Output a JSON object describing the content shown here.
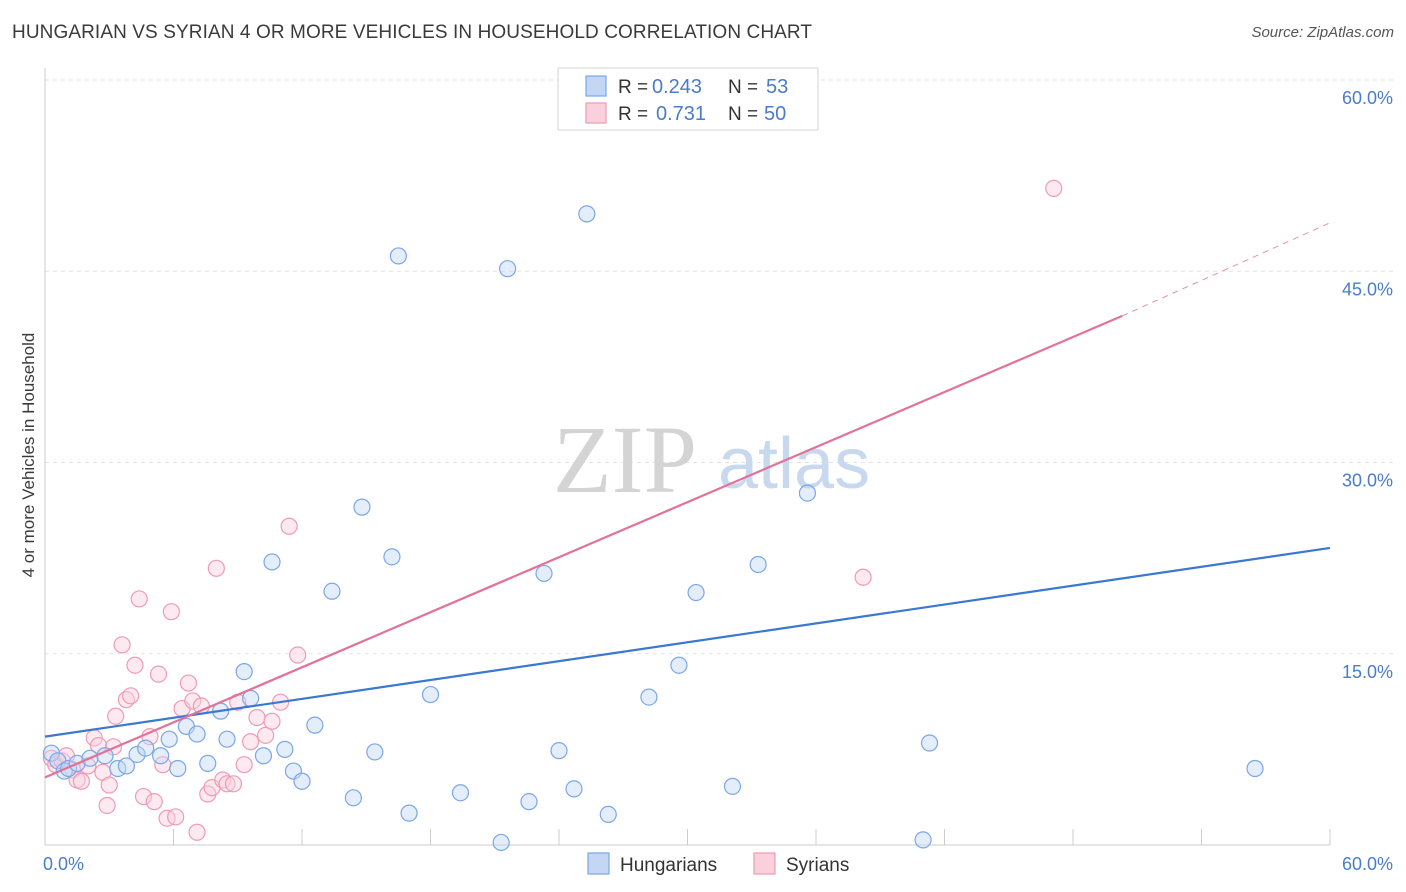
{
  "header": {
    "title": "HUNGARIAN VS SYRIAN 4 OR MORE VEHICLES IN HOUSEHOLD CORRELATION CHART",
    "source": "Source: ZipAtlas.com"
  },
  "watermark": {
    "zip": "ZIP",
    "atlas": "atlas"
  },
  "colors": {
    "hungarian": "#7aa7e8",
    "hungarian_line": "#3a78d2",
    "syrian": "#f09ab4",
    "syrian_line": "#e2729a",
    "tick": "#4a7cc9"
  },
  "chart_data": {
    "type": "scatter",
    "title": "HUNGARIAN VS SYRIAN 4 OR MORE VEHICLES IN HOUSEHOLD CORRELATION CHART",
    "xlabel": "",
    "ylabel": "4 or more Vehicles in Household",
    "xlim": [
      0,
      60
    ],
    "ylim": [
      0,
      60
    ],
    "x_tick_labels": [
      "0.0%",
      "60.0%"
    ],
    "y_ticks": [
      15,
      30,
      45,
      60
    ],
    "y_tick_labels": [
      "15.0%",
      "30.0%",
      "45.0%",
      "60.0%"
    ],
    "legend": [
      {
        "r_label": "R =",
        "r_value": "0.243",
        "n_label": "N =",
        "n_value": "53"
      },
      {
        "r_label": "R =",
        "r_value": "0.731",
        "n_label": "N =",
        "n_value": "50"
      }
    ],
    "series": [
      {
        "name": "Hungarians",
        "trend": {
          "x0": 0,
          "y0": 8.5,
          "x1": 60,
          "y1": 23.3
        },
        "points": [
          [
            0.3,
            7.2
          ],
          [
            0.6,
            6.6
          ],
          [
            0.9,
            5.8
          ],
          [
            1.1,
            6.0
          ],
          [
            1.5,
            6.4
          ],
          [
            2.1,
            6.8
          ],
          [
            2.8,
            7.0
          ],
          [
            3.4,
            6.0
          ],
          [
            3.8,
            6.2
          ],
          [
            4.3,
            7.1
          ],
          [
            4.7,
            7.6
          ],
          [
            5.4,
            7.0
          ],
          [
            5.8,
            8.3
          ],
          [
            6.2,
            6.0
          ],
          [
            6.6,
            9.3
          ],
          [
            7.1,
            8.7
          ],
          [
            7.6,
            6.4
          ],
          [
            8.2,
            10.5
          ],
          [
            8.5,
            8.3
          ],
          [
            9.3,
            13.6
          ],
          [
            9.6,
            11.5
          ],
          [
            10.2,
            7.0
          ],
          [
            10.6,
            22.2
          ],
          [
            11.2,
            7.5
          ],
          [
            11.6,
            5.8
          ],
          [
            12.0,
            5.0
          ],
          [
            12.6,
            9.4
          ],
          [
            13.4,
            19.9
          ],
          [
            14.4,
            3.7
          ],
          [
            14.8,
            26.5
          ],
          [
            15.4,
            7.3
          ],
          [
            16.2,
            22.6
          ],
          [
            16.5,
            46.2
          ],
          [
            17.0,
            2.5
          ],
          [
            18.0,
            11.8
          ],
          [
            19.4,
            4.1
          ],
          [
            21.3,
            0.2
          ],
          [
            21.6,
            45.2
          ],
          [
            22.6,
            3.4
          ],
          [
            23.3,
            21.3
          ],
          [
            24.0,
            7.4
          ],
          [
            24.7,
            4.4
          ],
          [
            25.3,
            49.5
          ],
          [
            26.3,
            2.4
          ],
          [
            28.2,
            11.6
          ],
          [
            29.6,
            14.1
          ],
          [
            30.4,
            19.8
          ],
          [
            32.1,
            4.6
          ],
          [
            33.3,
            22.0
          ],
          [
            35.6,
            27.6
          ],
          [
            41.0,
            0.4
          ],
          [
            41.3,
            8.0
          ],
          [
            56.5,
            6.0
          ]
        ]
      },
      {
        "name": "Syrians",
        "trend": {
          "x0": 0,
          "y0": 5.3,
          "x1": 50.3,
          "y1": 41.5
        },
        "trend_dashed": {
          "x0": 50.3,
          "y0": 41.5,
          "x1": 60,
          "y1": 48.8
        },
        "points": [
          [
            0.3,
            6.8
          ],
          [
            0.5,
            6.3
          ],
          [
            0.8,
            6.6
          ],
          [
            1.0,
            7.0
          ],
          [
            1.3,
            5.9
          ],
          [
            1.5,
            5.1
          ],
          [
            1.7,
            5.0
          ],
          [
            2.0,
            6.2
          ],
          [
            2.3,
            8.4
          ],
          [
            2.5,
            7.8
          ],
          [
            2.7,
            5.7
          ],
          [
            2.9,
            3.1
          ],
          [
            3.0,
            4.7
          ],
          [
            3.2,
            7.7
          ],
          [
            3.3,
            10.1
          ],
          [
            3.6,
            15.7
          ],
          [
            3.8,
            11.4
          ],
          [
            4.0,
            11.7
          ],
          [
            4.2,
            14.1
          ],
          [
            4.4,
            19.3
          ],
          [
            4.6,
            3.8
          ],
          [
            4.9,
            8.5
          ],
          [
            5.1,
            3.4
          ],
          [
            5.3,
            13.4
          ],
          [
            5.5,
            6.3
          ],
          [
            5.7,
            2.1
          ],
          [
            5.9,
            18.3
          ],
          [
            6.1,
            2.2
          ],
          [
            6.4,
            10.7
          ],
          [
            6.7,
            12.7
          ],
          [
            6.9,
            11.3
          ],
          [
            7.1,
            1.0
          ],
          [
            7.3,
            10.9
          ],
          [
            7.6,
            4.0
          ],
          [
            7.8,
            4.5
          ],
          [
            8.0,
            21.7
          ],
          [
            8.3,
            5.1
          ],
          [
            8.5,
            4.8
          ],
          [
            8.8,
            4.8
          ],
          [
            9.0,
            11.2
          ],
          [
            9.3,
            6.3
          ],
          [
            9.6,
            8.1
          ],
          [
            9.9,
            10.0
          ],
          [
            10.3,
            8.6
          ],
          [
            10.6,
            9.7
          ],
          [
            11.0,
            11.2
          ],
          [
            11.4,
            25.0
          ],
          [
            11.8,
            14.9
          ],
          [
            38.2,
            21.0
          ],
          [
            47.1,
            51.5
          ]
        ]
      }
    ]
  },
  "bottom_legend": {
    "hungarians": "Hungarians",
    "syrians": "Syrians"
  }
}
